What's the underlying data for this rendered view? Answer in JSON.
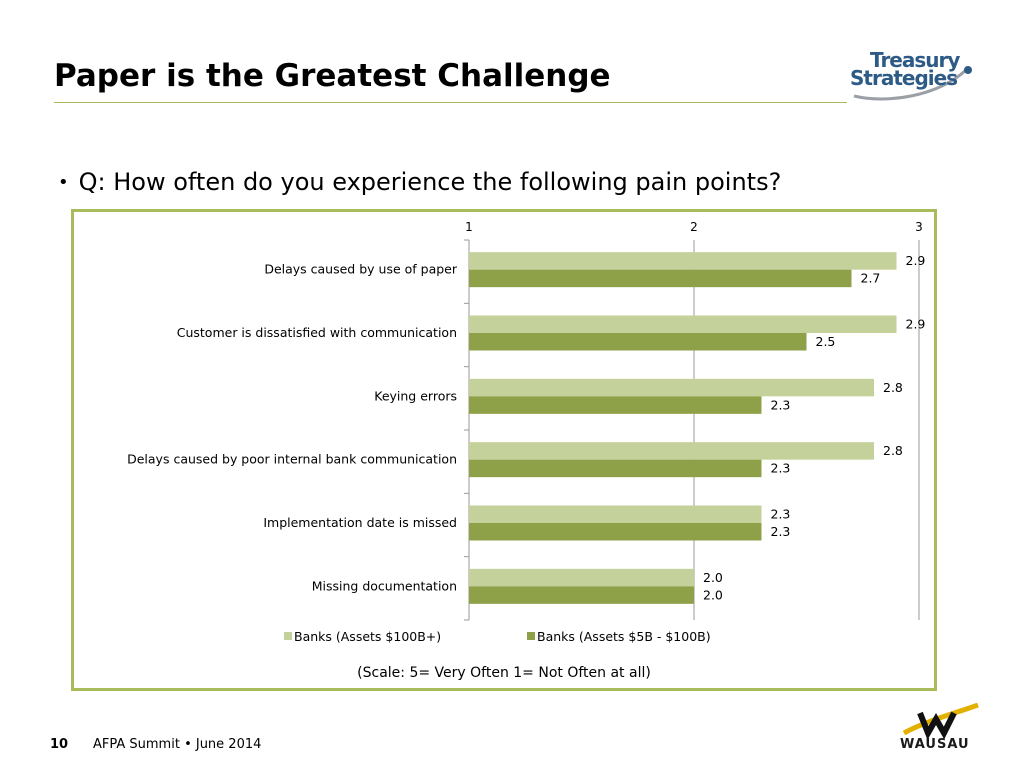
{
  "slide": {
    "title": "Paper is the Greatest Challenge",
    "bullet": "Q: How often do you experience the following pain points?",
    "bullet_symbol": "•",
    "footer_page": "10",
    "footer_text": "AFPA Summit • June 2014"
  },
  "logos": {
    "treasury_line1": "Treasury",
    "treasury_line2": "Strategies",
    "wausau_word": "WAUSAU"
  },
  "colors": {
    "accent": "#a8bc5c",
    "series_light": "#c4d19a",
    "series_dark": "#8fa148",
    "treasury_blue": "#2d5b86",
    "wausau_gold": "#e2b100"
  },
  "chart_data": {
    "type": "bar",
    "orientation": "horizontal",
    "categories": [
      "Delays caused by use of paper",
      "Customer is dissatisfied with communication",
      "Keying errors",
      "Delays caused by poor internal bank communication",
      "Implementation date is missed",
      "Missing documentation"
    ],
    "series": [
      {
        "name": "Banks (Assets $100B+)",
        "values": [
          2.9,
          2.9,
          2.8,
          2.8,
          2.3,
          2.0
        ],
        "labels": [
          "2.9",
          "2.9",
          "2.8",
          "2.8",
          "2.3",
          "2.0"
        ]
      },
      {
        "name": "Banks (Assets $5B - $100B)",
        "values": [
          2.7,
          2.5,
          2.3,
          2.3,
          2.3,
          2.0
        ],
        "labels": [
          "2.7",
          "2.5",
          "2.3",
          "2.3",
          "2.3",
          "2.0"
        ]
      }
    ],
    "xlim": [
      1,
      3
    ],
    "ticks": [
      "1",
      "2",
      "3"
    ],
    "tick_values": [
      1,
      2,
      3
    ],
    "axis_position": "top",
    "legend_position": "bottom",
    "grid": true,
    "note": "(Scale: 5= Very Often 1= Not Often at all)"
  }
}
